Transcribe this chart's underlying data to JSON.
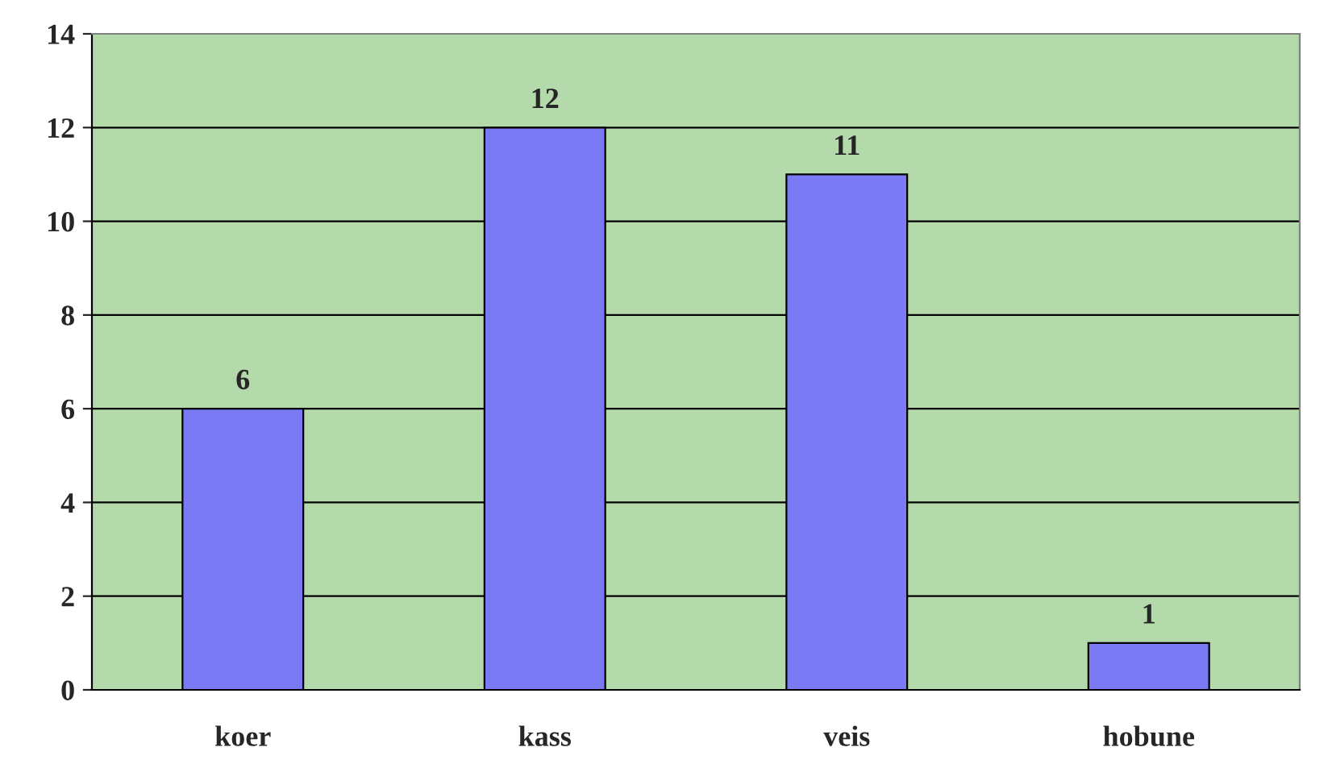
{
  "chart_data": {
    "type": "bar",
    "categories": [
      "koer",
      "kass",
      "veis",
      "hobune"
    ],
    "values": [
      6,
      12,
      11,
      1
    ],
    "color": "#7a7af5",
    "ylim": [
      0,
      14
    ],
    "yticks": [
      0,
      2,
      4,
      6,
      8,
      10,
      12,
      14
    ],
    "grid": "y",
    "data_labels": true
  }
}
